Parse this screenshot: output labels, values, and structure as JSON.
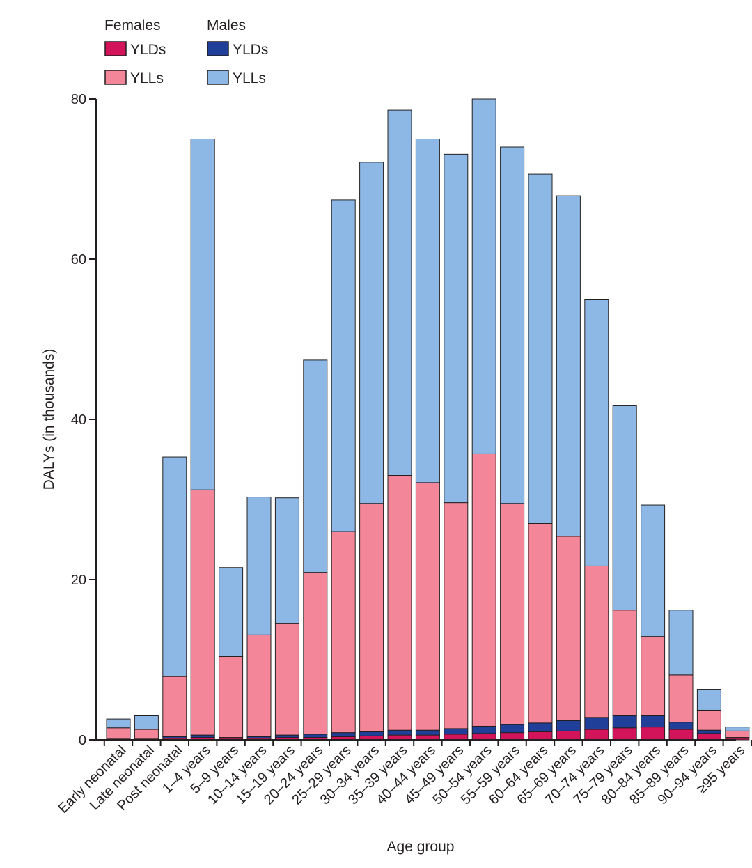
{
  "chart_data": {
    "type": "bar",
    "stacked": true,
    "xlabel": "Age group",
    "ylabel": "DALYs (in thousands)",
    "ylim": [
      0,
      80
    ],
    "yticks": [
      0,
      20,
      40,
      60,
      80
    ],
    "grid": false,
    "legend": {
      "placement": "top-left",
      "groups": [
        {
          "title": "Females",
          "entries": [
            {
              "label": "YLDs",
              "color": "#d4145a"
            },
            {
              "label": "YLLs",
              "color": "#f48699"
            }
          ]
        },
        {
          "title": "Males",
          "entries": [
            {
              "label": "YLDs",
              "color": "#1f3f99"
            },
            {
              "label": "YLLs",
              "color": "#8db8e5"
            }
          ]
        }
      ]
    },
    "categories": [
      "Early neonatal",
      "Late neonatal",
      "Post neonatal",
      "1–4 years",
      "5–9 years",
      "10–14 years",
      "15–19 years",
      "20–24 years",
      "25–29 years",
      "30–34 years",
      "35–39 years",
      "40–44 years",
      "45–49 years",
      "50–54 years",
      "55–59 years",
      "60–64 years",
      "65–69 years",
      "70–74 years",
      "75–79 years",
      "80–84 years",
      "85–89 years",
      "90–94 years",
      "≥95 years"
    ],
    "series": [
      {
        "name": "Females YLDs",
        "color": "#d4145a",
        "values": [
          0.05,
          0.05,
          0.2,
          0.3,
          0.2,
          0.2,
          0.3,
          0.3,
          0.4,
          0.5,
          0.6,
          0.6,
          0.7,
          0.8,
          0.9,
          1.0,
          1.1,
          1.3,
          1.5,
          1.6,
          1.3,
          0.8,
          0.2
        ]
      },
      {
        "name": "Males YLDs",
        "color": "#1f3f99",
        "values": [
          0.05,
          0.05,
          0.2,
          0.3,
          0.1,
          0.2,
          0.3,
          0.4,
          0.5,
          0.5,
          0.6,
          0.6,
          0.7,
          0.9,
          1.0,
          1.1,
          1.3,
          1.5,
          1.5,
          1.4,
          0.9,
          0.4,
          0.1
        ]
      },
      {
        "name": "Females YLLs",
        "color": "#f48699",
        "values": [
          1.4,
          1.2,
          7.5,
          30.6,
          10.1,
          12.7,
          13.9,
          20.2,
          25.1,
          28.5,
          31.8,
          30.9,
          28.2,
          34.0,
          27.6,
          24.9,
          23.0,
          18.9,
          13.2,
          9.9,
          5.9,
          2.5,
          0.8
        ]
      },
      {
        "name": "Males YLLs",
        "color": "#8db8e5",
        "values": [
          1.1,
          1.7,
          27.4,
          43.8,
          11.1,
          17.2,
          15.7,
          26.5,
          41.4,
          42.6,
          45.6,
          42.9,
          43.5,
          44.3,
          44.5,
          43.6,
          42.5,
          33.3,
          25.5,
          16.4,
          8.1,
          2.6,
          0.5
        ]
      }
    ]
  }
}
